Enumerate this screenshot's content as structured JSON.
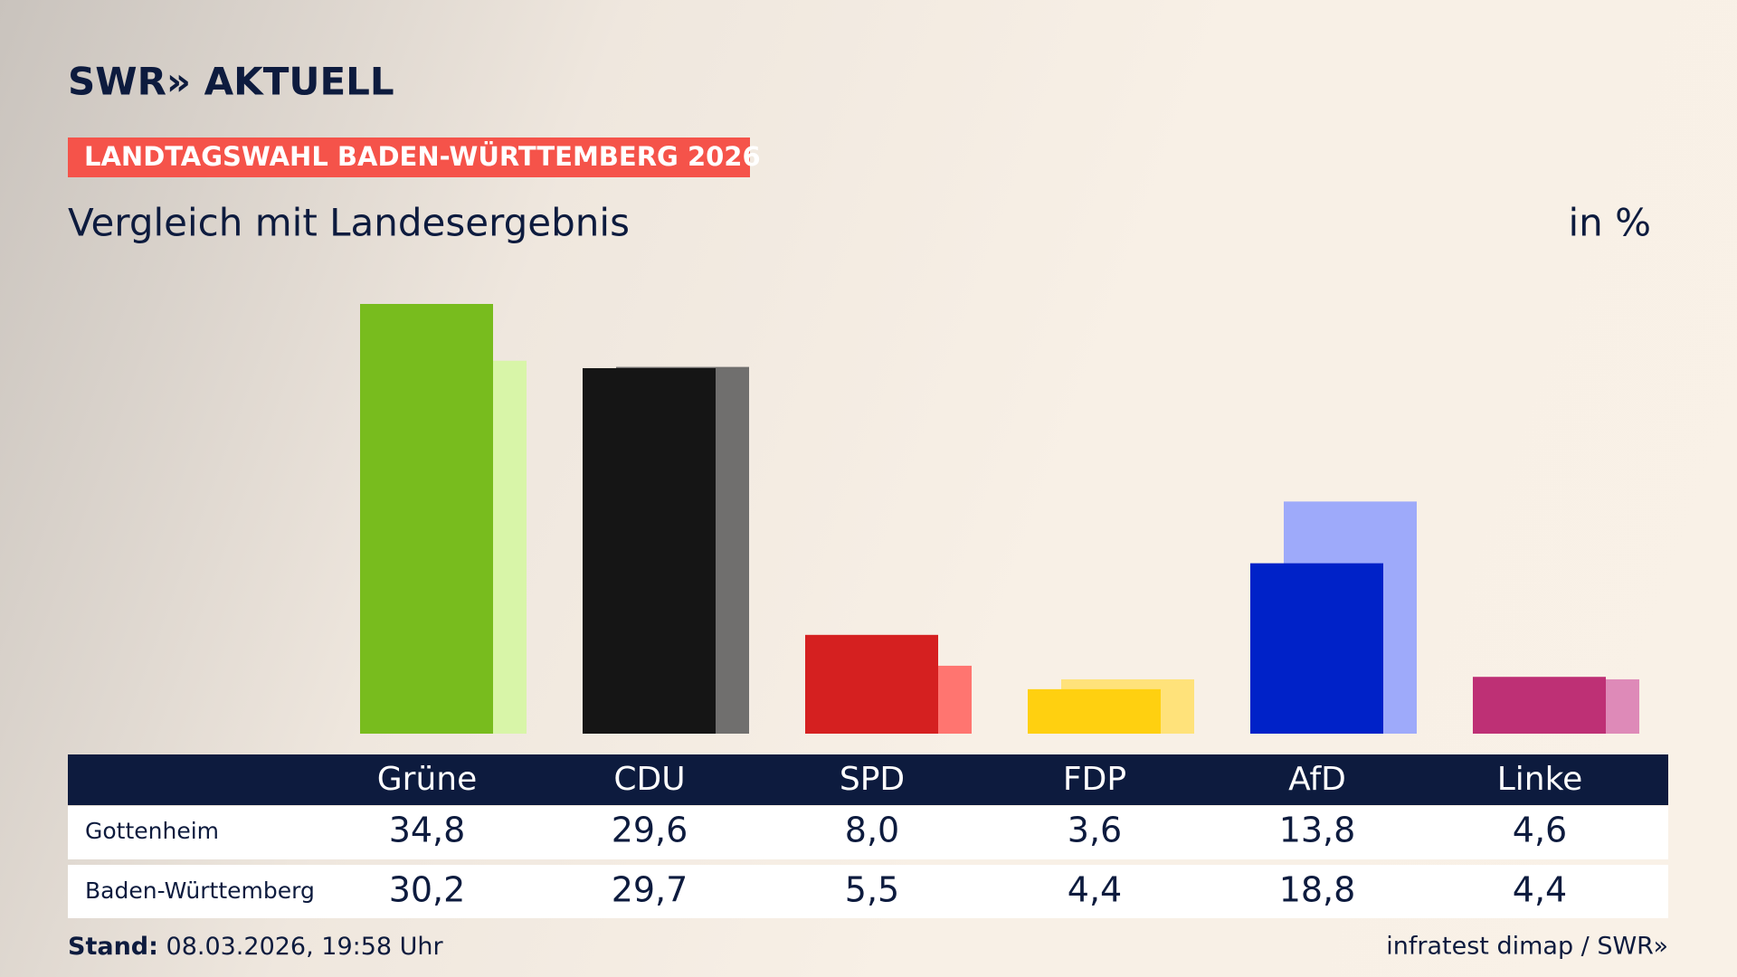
{
  "header": {
    "logo": "SWR» AKTUELL",
    "tag": "LANDTAGSWAHL BADEN-WÜRTTEMBERG 2026"
  },
  "chart_data": {
    "type": "bar",
    "title": "Vergleich mit Landesergebnis",
    "unit": "in %",
    "categories": [
      "Grüne",
      "CDU",
      "SPD",
      "FDP",
      "AfD",
      "Linke"
    ],
    "series": [
      {
        "name": "Gottenheim",
        "colors": [
          "#78bc1e",
          "#151515",
          "#d52020",
          "#ffd010",
          "#0022c8",
          "#be3075"
        ],
        "values": [
          34.8,
          29.6,
          8.0,
          3.6,
          13.8,
          4.6
        ],
        "value_labels": [
          "34,8",
          "29,6",
          "8,0",
          "3,6",
          "13,8",
          "4,6"
        ]
      },
      {
        "name": "Baden-Württemberg",
        "colors": [
          "#d8f5a8",
          "#706f6e",
          "#ff7570",
          "#ffe27a",
          "#9eaafa",
          "#de8ab8"
        ],
        "values": [
          30.2,
          29.7,
          5.5,
          4.4,
          18.8,
          4.4
        ],
        "value_labels": [
          "30,2",
          "29,7",
          "5,5",
          "4,4",
          "18,8",
          "4,4"
        ]
      }
    ]
  },
  "footer": {
    "stand_label": "Stand:",
    "stand": "08.03.2026, 19:58 Uhr",
    "source": "infratest dimap / SWR»"
  }
}
